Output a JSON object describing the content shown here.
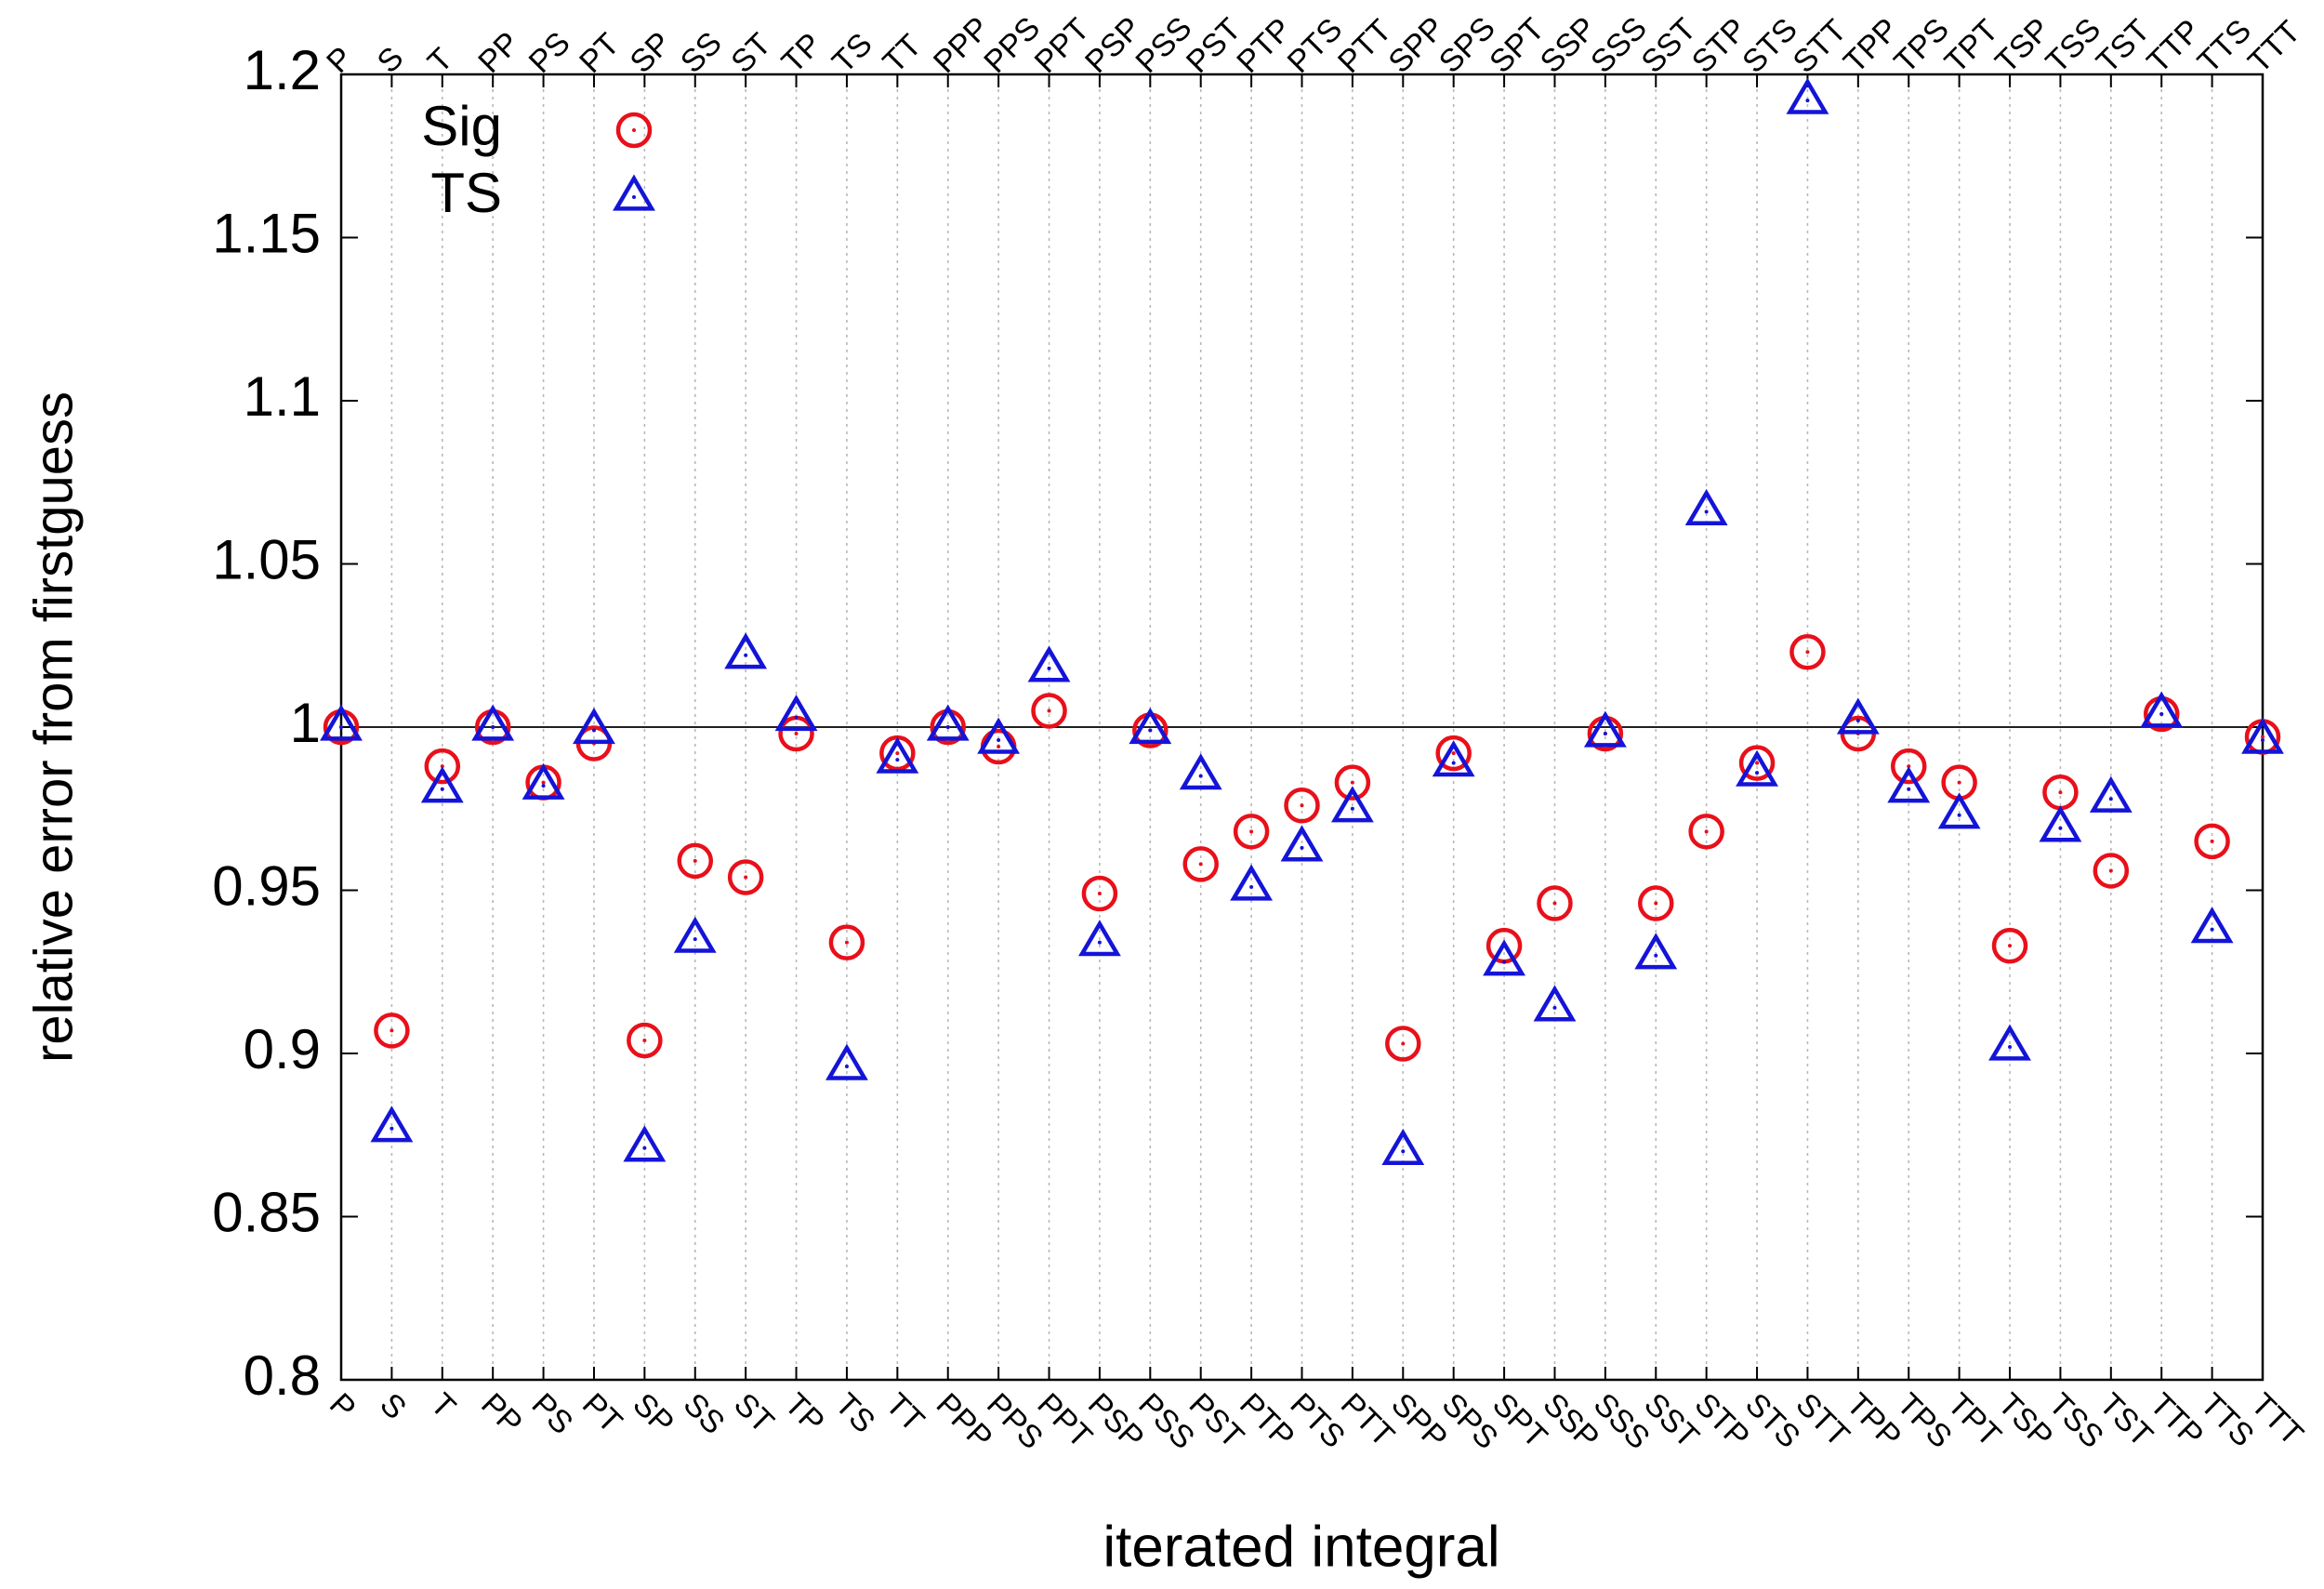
{
  "chart_data": {
    "type": "scatter",
    "x_label": "iterated integral",
    "y_label": "relative error from firstguess",
    "categories": [
      "P",
      "S",
      "T",
      "PP",
      "PS",
      "PT",
      "SP",
      "SS",
      "ST",
      "TP",
      "TS",
      "TT",
      "PPP",
      "PPS",
      "PPT",
      "PSP",
      "PSS",
      "PST",
      "PTP",
      "PTS",
      "PTT",
      "SPP",
      "SPS",
      "SPT",
      "SSP",
      "SSS",
      "SST",
      "STP",
      "STS",
      "STT",
      "TPP",
      "TPS",
      "TPT",
      "TSP",
      "TSS",
      "TST",
      "TTP",
      "TTS",
      "TTT"
    ],
    "series": [
      {
        "name": "Sig",
        "color": "#e8101a",
        "marker": "circle",
        "values": [
          1.0,
          0.907,
          0.988,
          1.0,
          0.983,
          0.995,
          0.904,
          0.959,
          0.954,
          0.998,
          0.934,
          0.992,
          1.0,
          0.994,
          1.005,
          0.949,
          0.999,
          0.958,
          0.968,
          0.976,
          0.983,
          0.903,
          0.992,
          0.933,
          0.946,
          0.998,
          0.946,
          0.968,
          0.989,
          1.023,
          0.998,
          0.988,
          0.983,
          0.933,
          0.98,
          0.956,
          1.004,
          0.965,
          0.997
        ]
      },
      {
        "name": "TS",
        "color": "#1414d8",
        "marker": "triangle",
        "values": [
          1.0,
          0.877,
          0.981,
          1.0,
          0.982,
          0.999,
          0.871,
          0.935,
          1.022,
          1.003,
          0.896,
          0.99,
          1.0,
          0.996,
          1.018,
          0.934,
          0.999,
          0.985,
          0.951,
          0.963,
          0.975,
          0.87,
          0.989,
          0.928,
          0.914,
          0.998,
          0.93,
          1.066,
          0.986,
          1.192,
          1.002,
          0.981,
          0.973,
          0.902,
          0.969,
          0.978,
          1.004,
          0.938,
          0.996
        ]
      }
    ],
    "ylim": [
      0.8,
      1.2
    ],
    "yticks": [
      0.8,
      0.85,
      0.9,
      0.95,
      1,
      1.05,
      1.1,
      1.15,
      1.2
    ],
    "reference_line": 1,
    "grid": "x",
    "legend": "upper left"
  }
}
